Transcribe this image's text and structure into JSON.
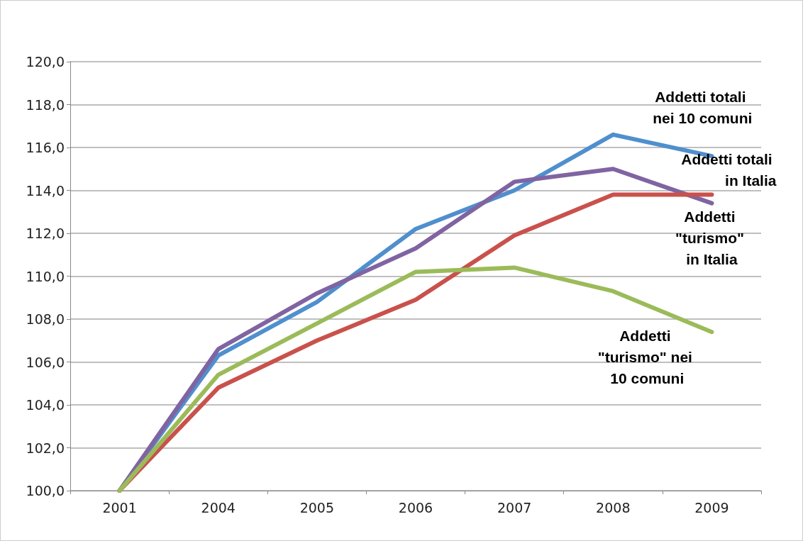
{
  "chart_data": {
    "type": "line",
    "categories": [
      "2001",
      "2004",
      "2005",
      "2006",
      "2007",
      "2008",
      "2009"
    ],
    "series": [
      {
        "name": "Addetti totali nei 10 comuni",
        "color": "#4f8fce",
        "values": [
          100,
          106.3,
          108.8,
          112.2,
          114.0,
          116.6,
          115.6
        ]
      },
      {
        "name": "Addetti totali in Italia",
        "color": "#8064a2",
        "values": [
          100,
          106.6,
          109.2,
          111.3,
          114.4,
          115.0,
          113.4
        ]
      },
      {
        "name": "Addetti \"turismo\" in Italia",
        "color": "#c9514c",
        "values": [
          100,
          104.8,
          107.0,
          108.9,
          111.9,
          113.8,
          113.8
        ]
      },
      {
        "name": "Addetti \"turismo\" nei 10 comuni",
        "color": "#9bbb59",
        "values": [
          100,
          105.4,
          107.8,
          110.2,
          110.4,
          109.3,
          107.4
        ]
      }
    ],
    "ylim": [
      100,
      120
    ],
    "yticks": [
      {
        "value": 100,
        "label": "100,0"
      },
      {
        "value": 102,
        "label": "102,0"
      },
      {
        "value": 104,
        "label": "104,0"
      },
      {
        "value": 106,
        "label": "106,0"
      },
      {
        "value": 108,
        "label": "108,0"
      },
      {
        "value": 110,
        "label": "110,0"
      },
      {
        "value": 112,
        "label": "112,0"
      },
      {
        "value": 114,
        "label": "114,0"
      },
      {
        "value": 116,
        "label": "116,0"
      },
      {
        "value": 118,
        "label": "118,0"
      },
      {
        "value": 120,
        "label": "120,0"
      }
    ],
    "grid": "y",
    "marker": "none",
    "line_style": "solid",
    "legend": false
  }
}
